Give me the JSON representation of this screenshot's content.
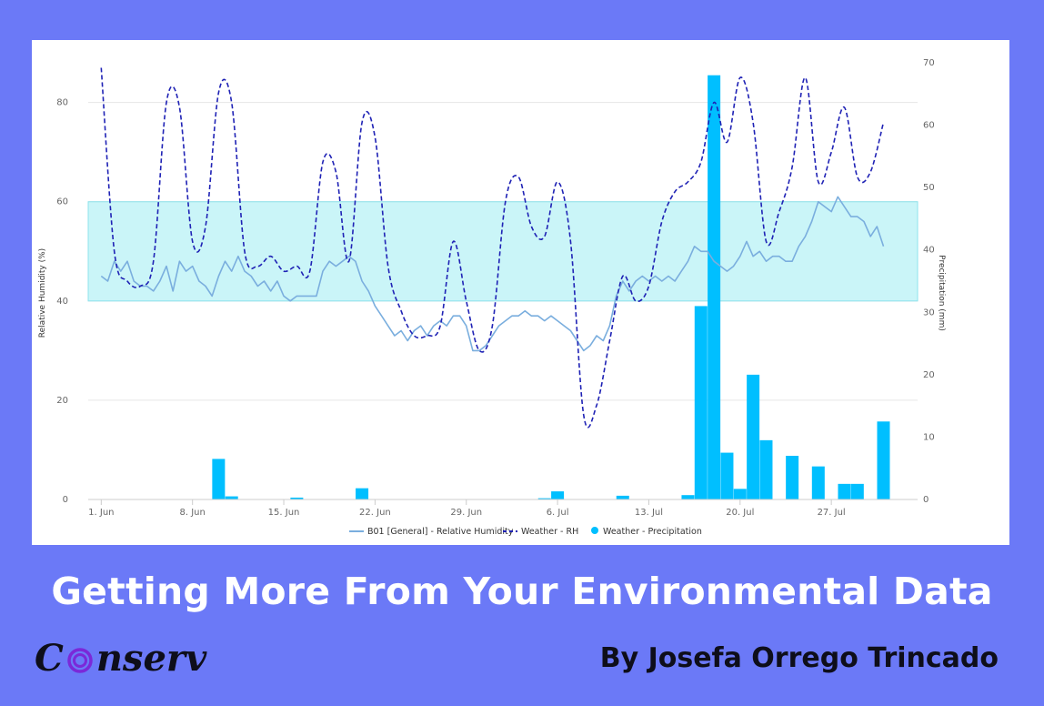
{
  "chart_data": {
    "type": "line",
    "title": "",
    "x_ticks": [
      "1. Jun",
      "8. Jun",
      "15. Jun",
      "22. Jun",
      "29. Jun",
      "6. Jul",
      "13. Jul",
      "20. Jul",
      "27. Jul"
    ],
    "x_tick_days": [
      1,
      8,
      15,
      22,
      29,
      36,
      43,
      50,
      57
    ],
    "x_range_days": [
      1,
      61
    ],
    "y_left": {
      "label": "Relative Humidity (%)",
      "range": [
        0,
        88
      ],
      "ticks": [
        "0",
        "20",
        "40",
        "60",
        "80"
      ]
    },
    "y_right": {
      "label": "Precipitation (mm)",
      "range": [
        0,
        70
      ],
      "ticks": [
        "0",
        "10",
        "20",
        "30",
        "40",
        "50",
        "60",
        "70"
      ]
    },
    "band": {
      "from": 40,
      "to": 60,
      "color": "#b8f1f6"
    },
    "grid": true,
    "legend_position": "bottom-center",
    "series": [
      {
        "name": "B01 [General] - Relative Humidity",
        "axis": "left",
        "style": "solid",
        "color": "#7aaede",
        "points": [
          [
            1,
            45
          ],
          [
            1.5,
            44
          ],
          [
            2,
            48
          ],
          [
            2.5,
            46
          ],
          [
            3,
            48
          ],
          [
            3.5,
            44
          ],
          [
            4,
            43
          ],
          [
            4.5,
            43
          ],
          [
            5,
            42
          ],
          [
            5.5,
            44
          ],
          [
            6,
            47
          ],
          [
            6.5,
            42
          ],
          [
            7,
            48
          ],
          [
            7.5,
            46
          ],
          [
            8,
            47
          ],
          [
            8.5,
            44
          ],
          [
            9,
            43
          ],
          [
            9.5,
            41
          ],
          [
            10,
            45
          ],
          [
            10.5,
            48
          ],
          [
            11,
            46
          ],
          [
            11.5,
            49
          ],
          [
            12,
            46
          ],
          [
            12.5,
            45
          ],
          [
            13,
            43
          ],
          [
            13.5,
            44
          ],
          [
            14,
            42
          ],
          [
            14.5,
            44
          ],
          [
            15,
            41
          ],
          [
            15.5,
            40
          ],
          [
            16,
            41
          ],
          [
            16.5,
            41
          ],
          [
            17,
            41
          ],
          [
            17.5,
            41
          ],
          [
            18,
            46
          ],
          [
            18.5,
            48
          ],
          [
            19,
            47
          ],
          [
            19.5,
            48
          ],
          [
            20,
            49
          ],
          [
            20.5,
            48
          ],
          [
            21,
            44
          ],
          [
            21.5,
            42
          ],
          [
            22,
            39
          ],
          [
            22.5,
            37
          ],
          [
            23,
            35
          ],
          [
            23.5,
            33
          ],
          [
            24,
            34
          ],
          [
            24.5,
            32
          ],
          [
            25,
            34
          ],
          [
            25.5,
            35
          ],
          [
            26,
            33
          ],
          [
            26.5,
            35
          ],
          [
            27,
            36
          ],
          [
            27.5,
            35
          ],
          [
            28,
            37
          ],
          [
            28.5,
            37
          ],
          [
            29,
            35
          ],
          [
            29.5,
            30
          ],
          [
            30,
            30
          ],
          [
            30.5,
            31
          ],
          [
            31,
            33
          ],
          [
            31.5,
            35
          ],
          [
            32,
            36
          ],
          [
            32.5,
            37
          ],
          [
            33,
            37
          ],
          [
            33.5,
            38
          ],
          [
            34,
            37
          ],
          [
            34.5,
            37
          ],
          [
            35,
            36
          ],
          [
            35.5,
            37
          ],
          [
            36,
            36
          ],
          [
            36.5,
            35
          ],
          [
            37,
            34
          ],
          [
            37.5,
            32
          ],
          [
            38,
            30
          ],
          [
            38.5,
            31
          ],
          [
            39,
            33
          ],
          [
            39.5,
            32
          ],
          [
            40,
            35
          ],
          [
            40.5,
            41
          ],
          [
            41,
            44
          ],
          [
            41.5,
            42
          ],
          [
            42,
            44
          ],
          [
            42.5,
            45
          ],
          [
            43,
            44
          ],
          [
            43.5,
            45
          ],
          [
            44,
            44
          ],
          [
            44.5,
            45
          ],
          [
            45,
            44
          ],
          [
            45.5,
            46
          ],
          [
            46,
            48
          ],
          [
            46.5,
            51
          ],
          [
            47,
            50
          ],
          [
            47.5,
            50
          ],
          [
            48,
            48
          ],
          [
            48.5,
            47
          ],
          [
            49,
            46
          ],
          [
            49.5,
            47
          ],
          [
            50,
            49
          ],
          [
            50.5,
            52
          ],
          [
            51,
            49
          ],
          [
            51.5,
            50
          ],
          [
            52,
            48
          ],
          [
            52.5,
            49
          ],
          [
            53,
            49
          ],
          [
            53.5,
            48
          ],
          [
            54,
            48
          ],
          [
            54.5,
            51
          ],
          [
            55,
            53
          ],
          [
            55.5,
            56
          ],
          [
            56,
            60
          ],
          [
            56.5,
            59
          ],
          [
            57,
            58
          ],
          [
            57.5,
            61
          ],
          [
            58,
            59
          ],
          [
            58.5,
            57
          ],
          [
            59,
            57
          ],
          [
            59.5,
            56
          ],
          [
            60,
            53
          ],
          [
            60.5,
            55
          ],
          [
            61,
            51
          ]
        ]
      },
      {
        "name": "Weather - RH",
        "axis": "left",
        "style": "dashed",
        "color": "#1f22b5",
        "points": [
          [
            1,
            87
          ],
          [
            2,
            50
          ],
          [
            3,
            44
          ],
          [
            4,
            43
          ],
          [
            5,
            48
          ],
          [
            6,
            80
          ],
          [
            7,
            79
          ],
          [
            8,
            52
          ],
          [
            9,
            55
          ],
          [
            10,
            82
          ],
          [
            11,
            80
          ],
          [
            12,
            50
          ],
          [
            13,
            47
          ],
          [
            14,
            49
          ],
          [
            15,
            46
          ],
          [
            16,
            47
          ],
          [
            17,
            46
          ],
          [
            18,
            68
          ],
          [
            19,
            66
          ],
          [
            20,
            48
          ],
          [
            21,
            76
          ],
          [
            22,
            73
          ],
          [
            23,
            47
          ],
          [
            24,
            38
          ],
          [
            25,
            33
          ],
          [
            26,
            33
          ],
          [
            27,
            35
          ],
          [
            28,
            52
          ],
          [
            29,
            40
          ],
          [
            30,
            30
          ],
          [
            31,
            35
          ],
          [
            32,
            60
          ],
          [
            33,
            65
          ],
          [
            34,
            55
          ],
          [
            35,
            53
          ],
          [
            36,
            64
          ],
          [
            37,
            52
          ],
          [
            38,
            17
          ],
          [
            39,
            19
          ],
          [
            40,
            32
          ],
          [
            41,
            45
          ],
          [
            42,
            40
          ],
          [
            43,
            43
          ],
          [
            44,
            56
          ],
          [
            45,
            62
          ],
          [
            46,
            64
          ],
          [
            47,
            68
          ],
          [
            48,
            80
          ],
          [
            49,
            72
          ],
          [
            50,
            85
          ],
          [
            51,
            76
          ],
          [
            52,
            52
          ],
          [
            53,
            58
          ],
          [
            54,
            67
          ],
          [
            55,
            85
          ],
          [
            56,
            64
          ],
          [
            57,
            70
          ],
          [
            58,
            79
          ],
          [
            59,
            65
          ],
          [
            60,
            66
          ],
          [
            61,
            76
          ]
        ]
      },
      {
        "name": "Weather - Precipitation",
        "axis": "right",
        "type": "bar",
        "color": "#00bfff",
        "points": [
          [
            10,
            6.5
          ],
          [
            11,
            0.5
          ],
          [
            16,
            0.3
          ],
          [
            21,
            1.8
          ],
          [
            35,
            0.2
          ],
          [
            36,
            1.3
          ],
          [
            41,
            0.6
          ],
          [
            46,
            0.7
          ],
          [
            47,
            31
          ],
          [
            48,
            68
          ],
          [
            49,
            7.5
          ],
          [
            50,
            1.7
          ],
          [
            51,
            20
          ],
          [
            52,
            9.5
          ],
          [
            54,
            7
          ],
          [
            56,
            5.3
          ],
          [
            58,
            2.5
          ],
          [
            59,
            2.5
          ],
          [
            61,
            12.5
          ]
        ]
      }
    ]
  },
  "headline": "Getting More From Your Environmental Data",
  "brand": {
    "prefix": "C",
    "suffix": "nserv"
  },
  "author": "By Josefa Orrego Trincado",
  "colors": {
    "background": "#6b79f7",
    "card": "#ffffff",
    "brand_ring": "#7b28d8"
  }
}
